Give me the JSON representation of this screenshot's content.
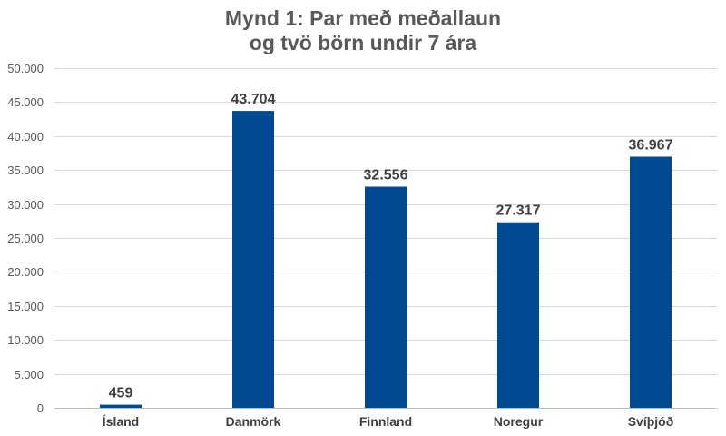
{
  "chart_data": {
    "type": "bar",
    "title_lines": [
      "Mynd 1: Par með meðallaun",
      "og tvö börn undir 7 ára"
    ],
    "categories": [
      "Ísland",
      "Danmörk",
      "Finnland",
      "Noregur",
      "Svíþjóð"
    ],
    "values": [
      459,
      43704,
      32556,
      27317,
      36967
    ],
    "value_labels": [
      "459",
      "43.704",
      "32.556",
      "27.317",
      "36.967"
    ],
    "yticks": [
      0,
      5000,
      10000,
      15000,
      20000,
      25000,
      30000,
      35000,
      40000,
      45000,
      50000
    ],
    "ytick_labels": [
      "0",
      "5.000",
      "10.000",
      "15.000",
      "20.000",
      "25.000",
      "30.000",
      "35.000",
      "40.000",
      "45.000",
      "50.000"
    ],
    "ylim": [
      0,
      50000
    ],
    "xlabel": "",
    "ylabel": "",
    "grid": true,
    "legend": "none",
    "bar_color": "#004a91"
  }
}
